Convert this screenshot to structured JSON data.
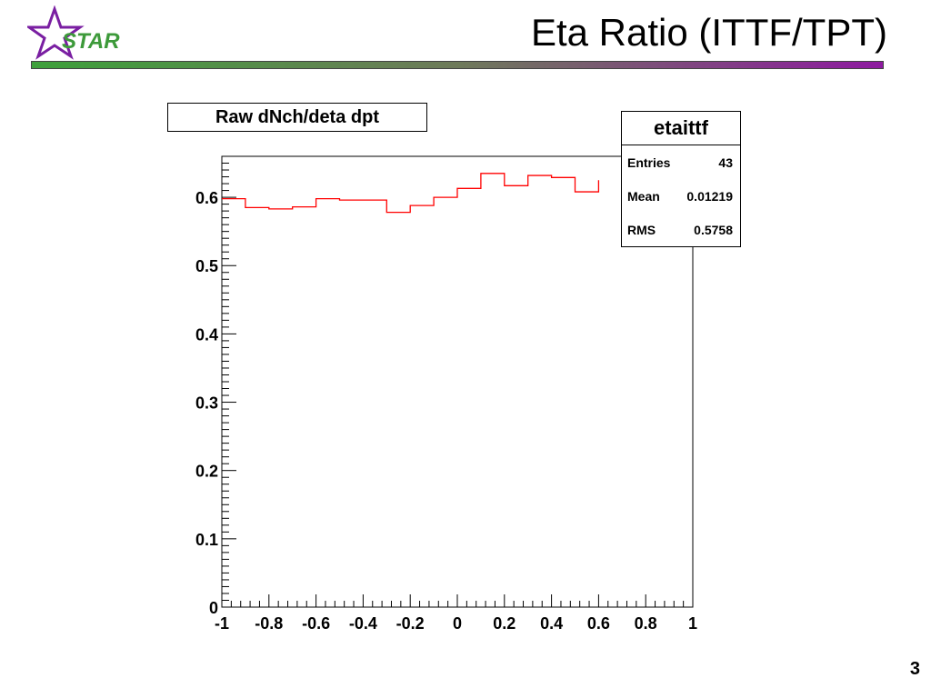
{
  "slide": {
    "title": "Eta Ratio (ITTF/TPT)",
    "logo_text": "STAR",
    "page_number": "3",
    "rule_gradient": [
      "#3da03a",
      "#6e7a5a",
      "#8e1aa0"
    ]
  },
  "stats_box": {
    "name": "etaittf",
    "rows": [
      {
        "label": "Entries",
        "value": "43"
      },
      {
        "label": "Mean",
        "value": "0.01219"
      },
      {
        "label": "RMS",
        "value": "0.5758"
      }
    ]
  },
  "chart_data": {
    "type": "line",
    "style": "step-histogram",
    "title": "Raw dNch/deta dpt",
    "xlabel": "",
    "ylabel": "",
    "xlim": [
      -1,
      1
    ],
    "ylim": [
      0,
      0.66
    ],
    "x_ticks": [
      "-1",
      "-0.8",
      "-0.6",
      "-0.4",
      "-0.2",
      "0",
      "0.2",
      "0.4",
      "0.6",
      "0.8",
      "1"
    ],
    "y_ticks": [
      "0",
      "0.1",
      "0.2",
      "0.3",
      "0.4",
      "0.5",
      "0.6"
    ],
    "line_color": "#ff0000",
    "grid": false,
    "bin_edges": [
      -1.0,
      -0.9,
      -0.8,
      -0.7,
      -0.6,
      -0.5,
      -0.4,
      -0.3,
      -0.2,
      -0.1,
      0.0,
      0.1,
      0.2,
      0.3,
      0.4,
      0.5,
      0.6
    ],
    "values": [
      0.598,
      0.585,
      0.583,
      0.586,
      0.598,
      0.596,
      0.596,
      0.578,
      0.588,
      0.6,
      0.613,
      0.635,
      0.617,
      0.632,
      0.629,
      0.608,
      0.625
    ]
  }
}
